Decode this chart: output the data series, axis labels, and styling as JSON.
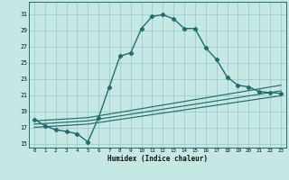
{
  "xlabel": "Humidex (Indice chaleur)",
  "background_color": "#c6e8e4",
  "grid_color": "#a0cccc",
  "line_color": "#1e6e6e",
  "xlim": [
    -0.5,
    23.5
  ],
  "ylim": [
    14.5,
    32.5
  ],
  "xticks": [
    0,
    1,
    2,
    3,
    4,
    5,
    6,
    7,
    8,
    9,
    10,
    11,
    12,
    13,
    14,
    15,
    16,
    17,
    18,
    19,
    20,
    21,
    22,
    23
  ],
  "yticks": [
    15,
    17,
    19,
    21,
    23,
    25,
    27,
    29,
    31
  ],
  "main_curve_x": [
    0,
    1,
    2,
    3,
    4,
    5,
    6,
    7,
    8,
    9,
    10,
    11,
    12,
    13,
    14,
    15,
    16,
    17,
    18,
    19,
    20,
    21,
    22,
    23
  ],
  "main_curve_y": [
    18.0,
    17.2,
    16.7,
    16.5,
    16.2,
    15.2,
    18.2,
    22.0,
    25.8,
    26.2,
    29.2,
    30.7,
    30.9,
    30.4,
    29.2,
    29.2,
    26.8,
    25.4,
    23.2,
    22.2,
    22.0,
    21.4,
    21.3,
    21.2
  ],
  "line2_x": [
    0,
    5,
    23
  ],
  "line2_y": [
    17.8,
    18.2,
    22.2
  ],
  "line3_x": [
    0,
    5,
    23
  ],
  "line3_y": [
    17.4,
    17.8,
    21.5
  ],
  "line4_x": [
    0,
    5,
    23
  ],
  "line4_y": [
    17.0,
    17.4,
    20.9
  ]
}
